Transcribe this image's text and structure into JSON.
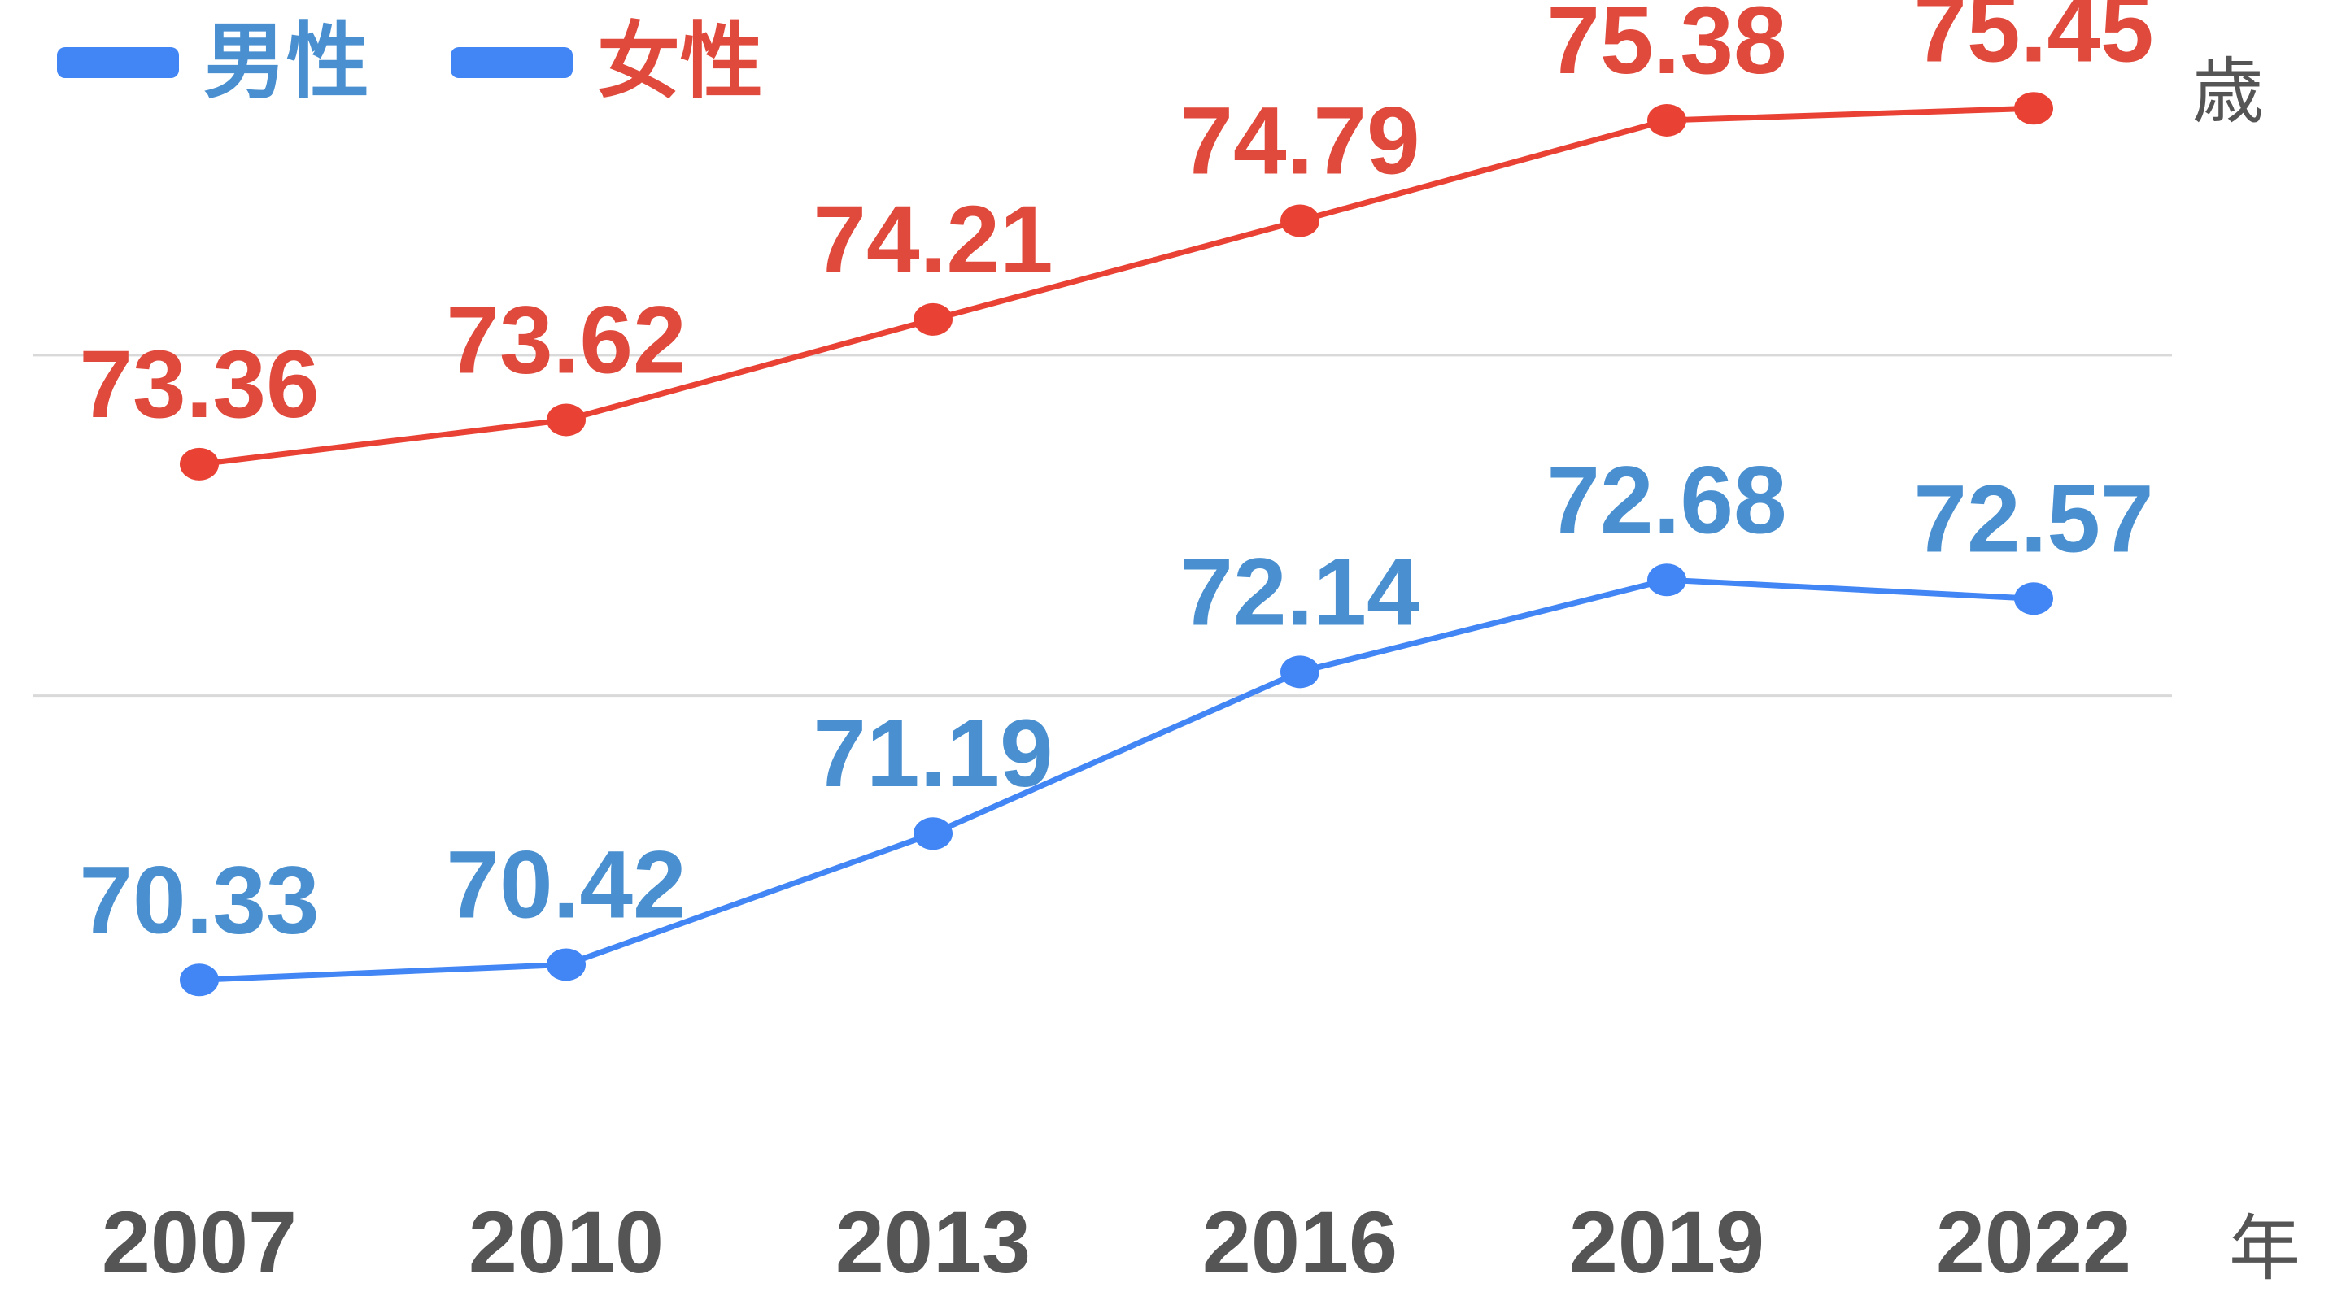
{
  "chart_data": {
    "type": "line",
    "categories": [
      "2007",
      "2010",
      "2013",
      "2016",
      "2019",
      "2022"
    ],
    "series": [
      {
        "name": "男性",
        "values": [
          70.33,
          70.42,
          71.19,
          72.14,
          72.68,
          72.57
        ]
      },
      {
        "name": "女性",
        "values": [
          73.36,
          73.62,
          74.21,
          74.79,
          75.38,
          75.45
        ]
      }
    ],
    "title": "",
    "xlabel": "年",
    "ylabel": "歳",
    "ylim": [
      69.4,
      75.8
    ],
    "grid": "horizontal",
    "legend_position": "top-left",
    "data_labels": true
  },
  "colors": {
    "male_line": "#4285f4",
    "male_label": "#4a90d0",
    "female_line": "#e94235",
    "female_label": "#e04a3c",
    "axis_text": "#555555",
    "grid": "#d9d9d9"
  },
  "legend": {
    "male": "男性",
    "female": "女性"
  }
}
